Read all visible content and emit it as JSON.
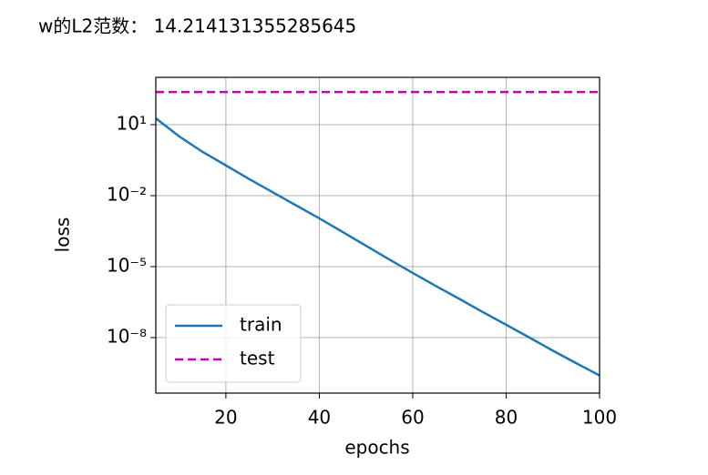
{
  "header": "w的L2范数： 14.214131355285645",
  "chart_data": {
    "type": "line",
    "x_label": "epochs",
    "y_label": "loss",
    "x": [
      5,
      10,
      15,
      20,
      25,
      30,
      35,
      40,
      45,
      50,
      55,
      60,
      65,
      70,
      75,
      80,
      85,
      90,
      95,
      100
    ],
    "series": [
      {
        "name": "train",
        "color": "#1f77b4",
        "linestyle": "solid",
        "values": [
          18.6,
          3.2,
          0.71,
          0.19,
          0.05,
          0.014,
          0.0039,
          0.0011,
          0.00029,
          7.6e-05,
          2e-05,
          5.4e-06,
          1.5e-06,
          4.3e-07,
          1.2e-07,
          3.5e-08,
          1e-08,
          2.8e-09,
          8.3e-10,
          2.5e-10
        ]
      },
      {
        "name": "test",
        "color": "#bf00bf",
        "linestyle": "dashed",
        "values": [
          240,
          240,
          240,
          240,
          240,
          240,
          240,
          240,
          240,
          240,
          240,
          240,
          240,
          240,
          240,
          240,
          240,
          240,
          240,
          240
        ]
      }
    ],
    "xlim": [
      5,
      100
    ],
    "xticks": [
      20,
      40,
      60,
      80,
      100
    ],
    "ylim": [
      4.5e-11,
      1000
    ],
    "ylog": true,
    "yticks": [
      {
        "value": 10,
        "label": "10¹"
      },
      {
        "value": 0.01,
        "label": "10⁻²"
      },
      {
        "value": 1e-05,
        "label": "10⁻⁵"
      },
      {
        "value": 1e-08,
        "label": "10⁻⁸"
      }
    ],
    "grid": true,
    "legend": "lower left"
  }
}
